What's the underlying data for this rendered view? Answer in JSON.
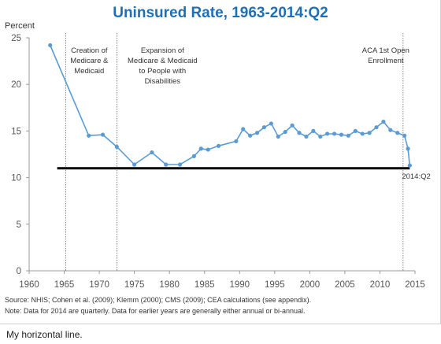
{
  "caption": "My horizontal line.",
  "chart_data": {
    "type": "line",
    "title": "Uninsured Rate, 1963-2014:Q2",
    "ylabel": "Percent",
    "xlabel": "",
    "xlim": [
      1960,
      2015
    ],
    "ylim": [
      0,
      25
    ],
    "xticks": [
      1960,
      1965,
      1970,
      1975,
      1980,
      1985,
      1990,
      1995,
      2000,
      2005,
      2010,
      2015
    ],
    "yticks": [
      0,
      5,
      10,
      15,
      20,
      25
    ],
    "grid": false,
    "series": [
      {
        "name": "",
        "color": "#5b9bd5",
        "x": [
          1963,
          1968.5,
          1970.5,
          1972.5,
          1975,
          1977.5,
          1979.5,
          1981.5,
          1983.5,
          1984.5,
          1985.5,
          1987,
          1989.5,
          1990.5,
          1991.5,
          1992.5,
          1993.5,
          1994.5,
          1995.5,
          1996.5,
          1997.5,
          1998.5,
          1999.5,
          2000.5,
          2001.5,
          2002.5,
          2003.5,
          2004.5,
          2005.5,
          2006.5,
          2007.5,
          2008.5,
          2009.5,
          2010.5,
          2011.5,
          2012.5,
          2013.5,
          2014,
          2014.25
        ],
        "y": [
          24.2,
          14.5,
          14.6,
          13.3,
          11.4,
          12.7,
          11.4,
          11.4,
          12.3,
          13.1,
          13.0,
          13.4,
          13.9,
          15.2,
          14.5,
          14.8,
          15.4,
          15.8,
          14.4,
          14.9,
          15.6,
          14.8,
          14.4,
          15.0,
          14.4,
          14.7,
          14.7,
          14.6,
          14.5,
          15.0,
          14.7,
          14.8,
          15.4,
          16.0,
          15.1,
          14.8,
          14.5,
          13.1,
          11.3
        ]
      }
    ],
    "reference_line": {
      "y": 11.0,
      "x_from": 1964,
      "x_to": 2014.25,
      "color": "#000000",
      "label": "2014:Q2"
    },
    "events": [
      {
        "x": 1965.2,
        "lines": [
          "Creation of",
          "Medicare &",
          "Medicaid"
        ]
      },
      {
        "x": 1972.5,
        "lines": [
          "Expansion of",
          "Medicare & Medicaid",
          "to People with",
          "Disabilities"
        ]
      },
      {
        "x": 2013.3,
        "lines": [
          "ACA 1st Open",
          "Enrollment"
        ]
      }
    ],
    "source": "Source: NHIS; Cohen et al. (2009); Klemm (2000); CMS (2009); CEA calculations (see appendix).",
    "note": "Note: Data for 2014 are quarterly.  Data for earlier years are generally either annual or bi-annual."
  }
}
